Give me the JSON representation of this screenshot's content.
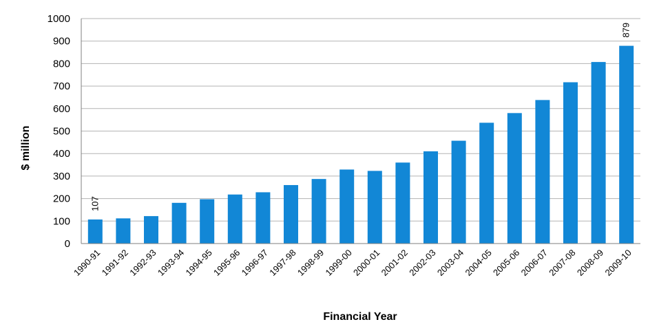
{
  "chart_data": {
    "type": "bar",
    "title": "",
    "xlabel": "Financial Year",
    "ylabel": "$ million",
    "ylim": [
      0,
      1000
    ],
    "yticks": [
      "0",
      "100",
      "200",
      "300",
      "400",
      "500",
      "600",
      "700",
      "800",
      "900",
      "1000"
    ],
    "grid": true,
    "legend": "none",
    "bar_color": "#1287d6",
    "categories": [
      "1990-91",
      "1991-92",
      "1992-93",
      "1993-94",
      "1994-95",
      "1995-96",
      "1996-97",
      "1997-98",
      "1998-99",
      "1999-00",
      "2000-01",
      "2001-02",
      "2002-03",
      "2003-04",
      "2004-05",
      "2005-06",
      "2006-07",
      "2007-08",
      "2008-09",
      "2009-10"
    ],
    "values": [
      107,
      112,
      122,
      181,
      197,
      218,
      228,
      260,
      287,
      329,
      323,
      360,
      410,
      457,
      537,
      580,
      638,
      717,
      807,
      879
    ],
    "data_labels": [
      {
        "category": "1990-91",
        "text": "107"
      },
      {
        "category": "2009-10",
        "text": "879"
      }
    ]
  }
}
